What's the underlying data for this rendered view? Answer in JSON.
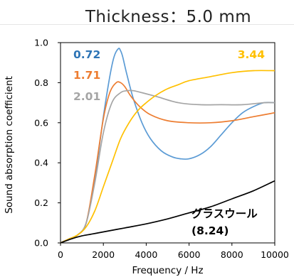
{
  "page": {
    "title": "Thickness：5.0 mm"
  },
  "chart_data": {
    "type": "line",
    "title": "Thickness：5.0 mm",
    "xlabel": "Frequency / Hz",
    "ylabel": "Sound absorption coefficient",
    "xlim": [
      0,
      10000
    ],
    "ylim": [
      0,
      1
    ],
    "xticks": [
      "0",
      "2000",
      "4000",
      "6000",
      "8000",
      "10000"
    ],
    "yticks": [
      "0.0",
      "0.2",
      "0.4",
      "0.6",
      "0.8",
      "1.0"
    ],
    "grid": false,
    "series": [
      {
        "name": "0.72",
        "color": "#5b9bd5",
        "x": [
          0,
          400,
          800,
          1200,
          1600,
          2000,
          2300,
          2500,
          2700,
          2800,
          2900,
          3100,
          3400,
          3800,
          4200,
          4700,
          5200,
          5600,
          6000,
          6500,
          7000,
          7500,
          8000,
          8500,
          9000,
          9500,
          10000
        ],
        "y": [
          0.0,
          0.02,
          0.04,
          0.1,
          0.32,
          0.63,
          0.83,
          0.93,
          0.97,
          0.96,
          0.93,
          0.84,
          0.72,
          0.6,
          0.52,
          0.46,
          0.43,
          0.42,
          0.42,
          0.44,
          0.48,
          0.54,
          0.6,
          0.65,
          0.68,
          0.7,
          0.7
        ]
      },
      {
        "name": "1.71",
        "color": "#ed7d31",
        "x": [
          0,
          400,
          800,
          1200,
          1600,
          2000,
          2300,
          2600,
          2800,
          3000,
          3300,
          3700,
          4200,
          5000,
          6000,
          7000,
          8000,
          9000,
          10000
        ],
        "y": [
          0.0,
          0.02,
          0.04,
          0.1,
          0.34,
          0.62,
          0.75,
          0.8,
          0.8,
          0.78,
          0.73,
          0.68,
          0.64,
          0.61,
          0.6,
          0.6,
          0.61,
          0.63,
          0.65
        ]
      },
      {
        "name": "2.01",
        "color": "#a5a5a5",
        "x": [
          0,
          400,
          800,
          1200,
          1600,
          2000,
          2400,
          2800,
          3100,
          3400,
          3800,
          4500,
          5500,
          6500,
          7500,
          8500,
          9500,
          10000
        ],
        "y": [
          0.0,
          0.02,
          0.04,
          0.1,
          0.3,
          0.55,
          0.7,
          0.75,
          0.76,
          0.76,
          0.75,
          0.73,
          0.7,
          0.69,
          0.69,
          0.69,
          0.7,
          0.7
        ]
      },
      {
        "name": "3.44",
        "color": "#ffc000",
        "x": [
          0,
          400,
          800,
          1200,
          1600,
          2000,
          2400,
          2800,
          3200,
          3600,
          4000,
          4500,
          5000,
          5500,
          6000,
          7000,
          8000,
          9000,
          10000
        ],
        "y": [
          0.0,
          0.02,
          0.04,
          0.08,
          0.16,
          0.28,
          0.4,
          0.52,
          0.6,
          0.66,
          0.7,
          0.74,
          0.77,
          0.79,
          0.81,
          0.83,
          0.85,
          0.86,
          0.86
        ]
      },
      {
        "name": "グラスウール\n(8.24)",
        "color": "#000000",
        "x": [
          0,
          500,
          1000,
          1500,
          2000,
          3000,
          4000,
          5000,
          6000,
          7000,
          8000,
          9000,
          10000
        ],
        "y": [
          0.0,
          0.02,
          0.035,
          0.045,
          0.055,
          0.075,
          0.095,
          0.12,
          0.15,
          0.18,
          0.22,
          0.26,
          0.31
        ]
      }
    ],
    "annotations": [
      {
        "text": "0.72",
        "color": "#2e75b6"
      },
      {
        "text": "1.71",
        "color": "#ed7d31"
      },
      {
        "text": "2.01",
        "color": "#a5a5a5"
      },
      {
        "text": "3.44",
        "color": "#ffc000"
      },
      {
        "text": "グラスウール",
        "color": "#000000"
      },
      {
        "text": "(8.24)",
        "color": "#000000"
      }
    ]
  }
}
